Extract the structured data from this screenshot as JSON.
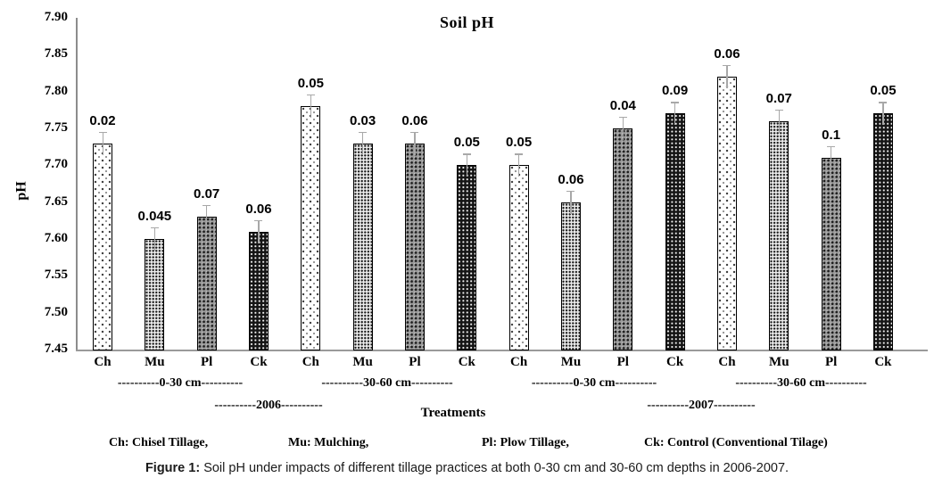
{
  "figure": {
    "caption_prefix": "Figure 1:",
    "caption_text": " Soil pH under impacts of different tillage practices at both 0-30 cm and 30-60 cm depths in 2006-2007."
  },
  "legend": {
    "items": [
      {
        "label": "Ch: Chisel Tillage,"
      },
      {
        "label": "Mu: Mulching,"
      },
      {
        "label": "Pl: Plow Tillage,"
      },
      {
        "label": "Ck: Control (Conventional Tilage)"
      }
    ]
  },
  "chart_data": {
    "type": "bar",
    "title": "Soil pH",
    "xlabel": "Treatments",
    "ylabel": "pH",
    "ylim": [
      7.45,
      7.9
    ],
    "grid": false,
    "legend_position": "below",
    "y_ticks": [
      "7.90",
      "7.85",
      "7.80",
      "7.75",
      "7.70",
      "7.65",
      "7.60",
      "7.55",
      "7.50",
      "7.45"
    ],
    "categories": [
      "Ch",
      "Mu",
      "Pl",
      "Ck",
      "Ch",
      "Mu",
      "Pl",
      "Ck",
      "Ch",
      "Mu",
      "Pl",
      "Ck",
      "Ch",
      "Mu",
      "Pl",
      "Ck"
    ],
    "series": [
      {
        "name": "Soil pH",
        "values": [
          7.73,
          7.6,
          7.63,
          7.61,
          7.78,
          7.73,
          7.73,
          7.7,
          7.7,
          7.65,
          7.75,
          7.77,
          7.82,
          7.76,
          7.71,
          7.77
        ]
      }
    ],
    "error_values": [
      0.02,
      0.045,
      0.07,
      0.06,
      0.05,
      0.03,
      0.06,
      0.05,
      0.05,
      0.06,
      0.04,
      0.09,
      0.06,
      0.07,
      0.1,
      0.05
    ],
    "error_labels": [
      "0.02",
      "0.045",
      "0.07",
      "0.06",
      "0.05",
      "0.03",
      "0.06",
      "0.05",
      "0.05",
      "0.06",
      "0.04",
      "0.09",
      "0.06",
      "0.07",
      "0.1",
      "0.05"
    ],
    "depth_group_labels": [
      "----------0-30 cm----------",
      "----------30-60 cm----------",
      "----------0-30 cm----------",
      "----------30-60 cm----------"
    ],
    "year_group_labels": [
      "----------2006----------",
      "----------2007----------"
    ],
    "treatments": [
      {
        "code": "Ch",
        "pattern": "dotted-white",
        "fill": "#ffffff"
      },
      {
        "code": "Mu",
        "pattern": "fine-check-light-gray",
        "fill": "#ededed"
      },
      {
        "code": "Pl",
        "pattern": "check-dark-gray",
        "fill": "#9c9c9c"
      },
      {
        "code": "Ck",
        "pattern": "dotted-black",
        "fill": "#151515"
      }
    ],
    "error_bar_color": "#a8a8a8"
  }
}
